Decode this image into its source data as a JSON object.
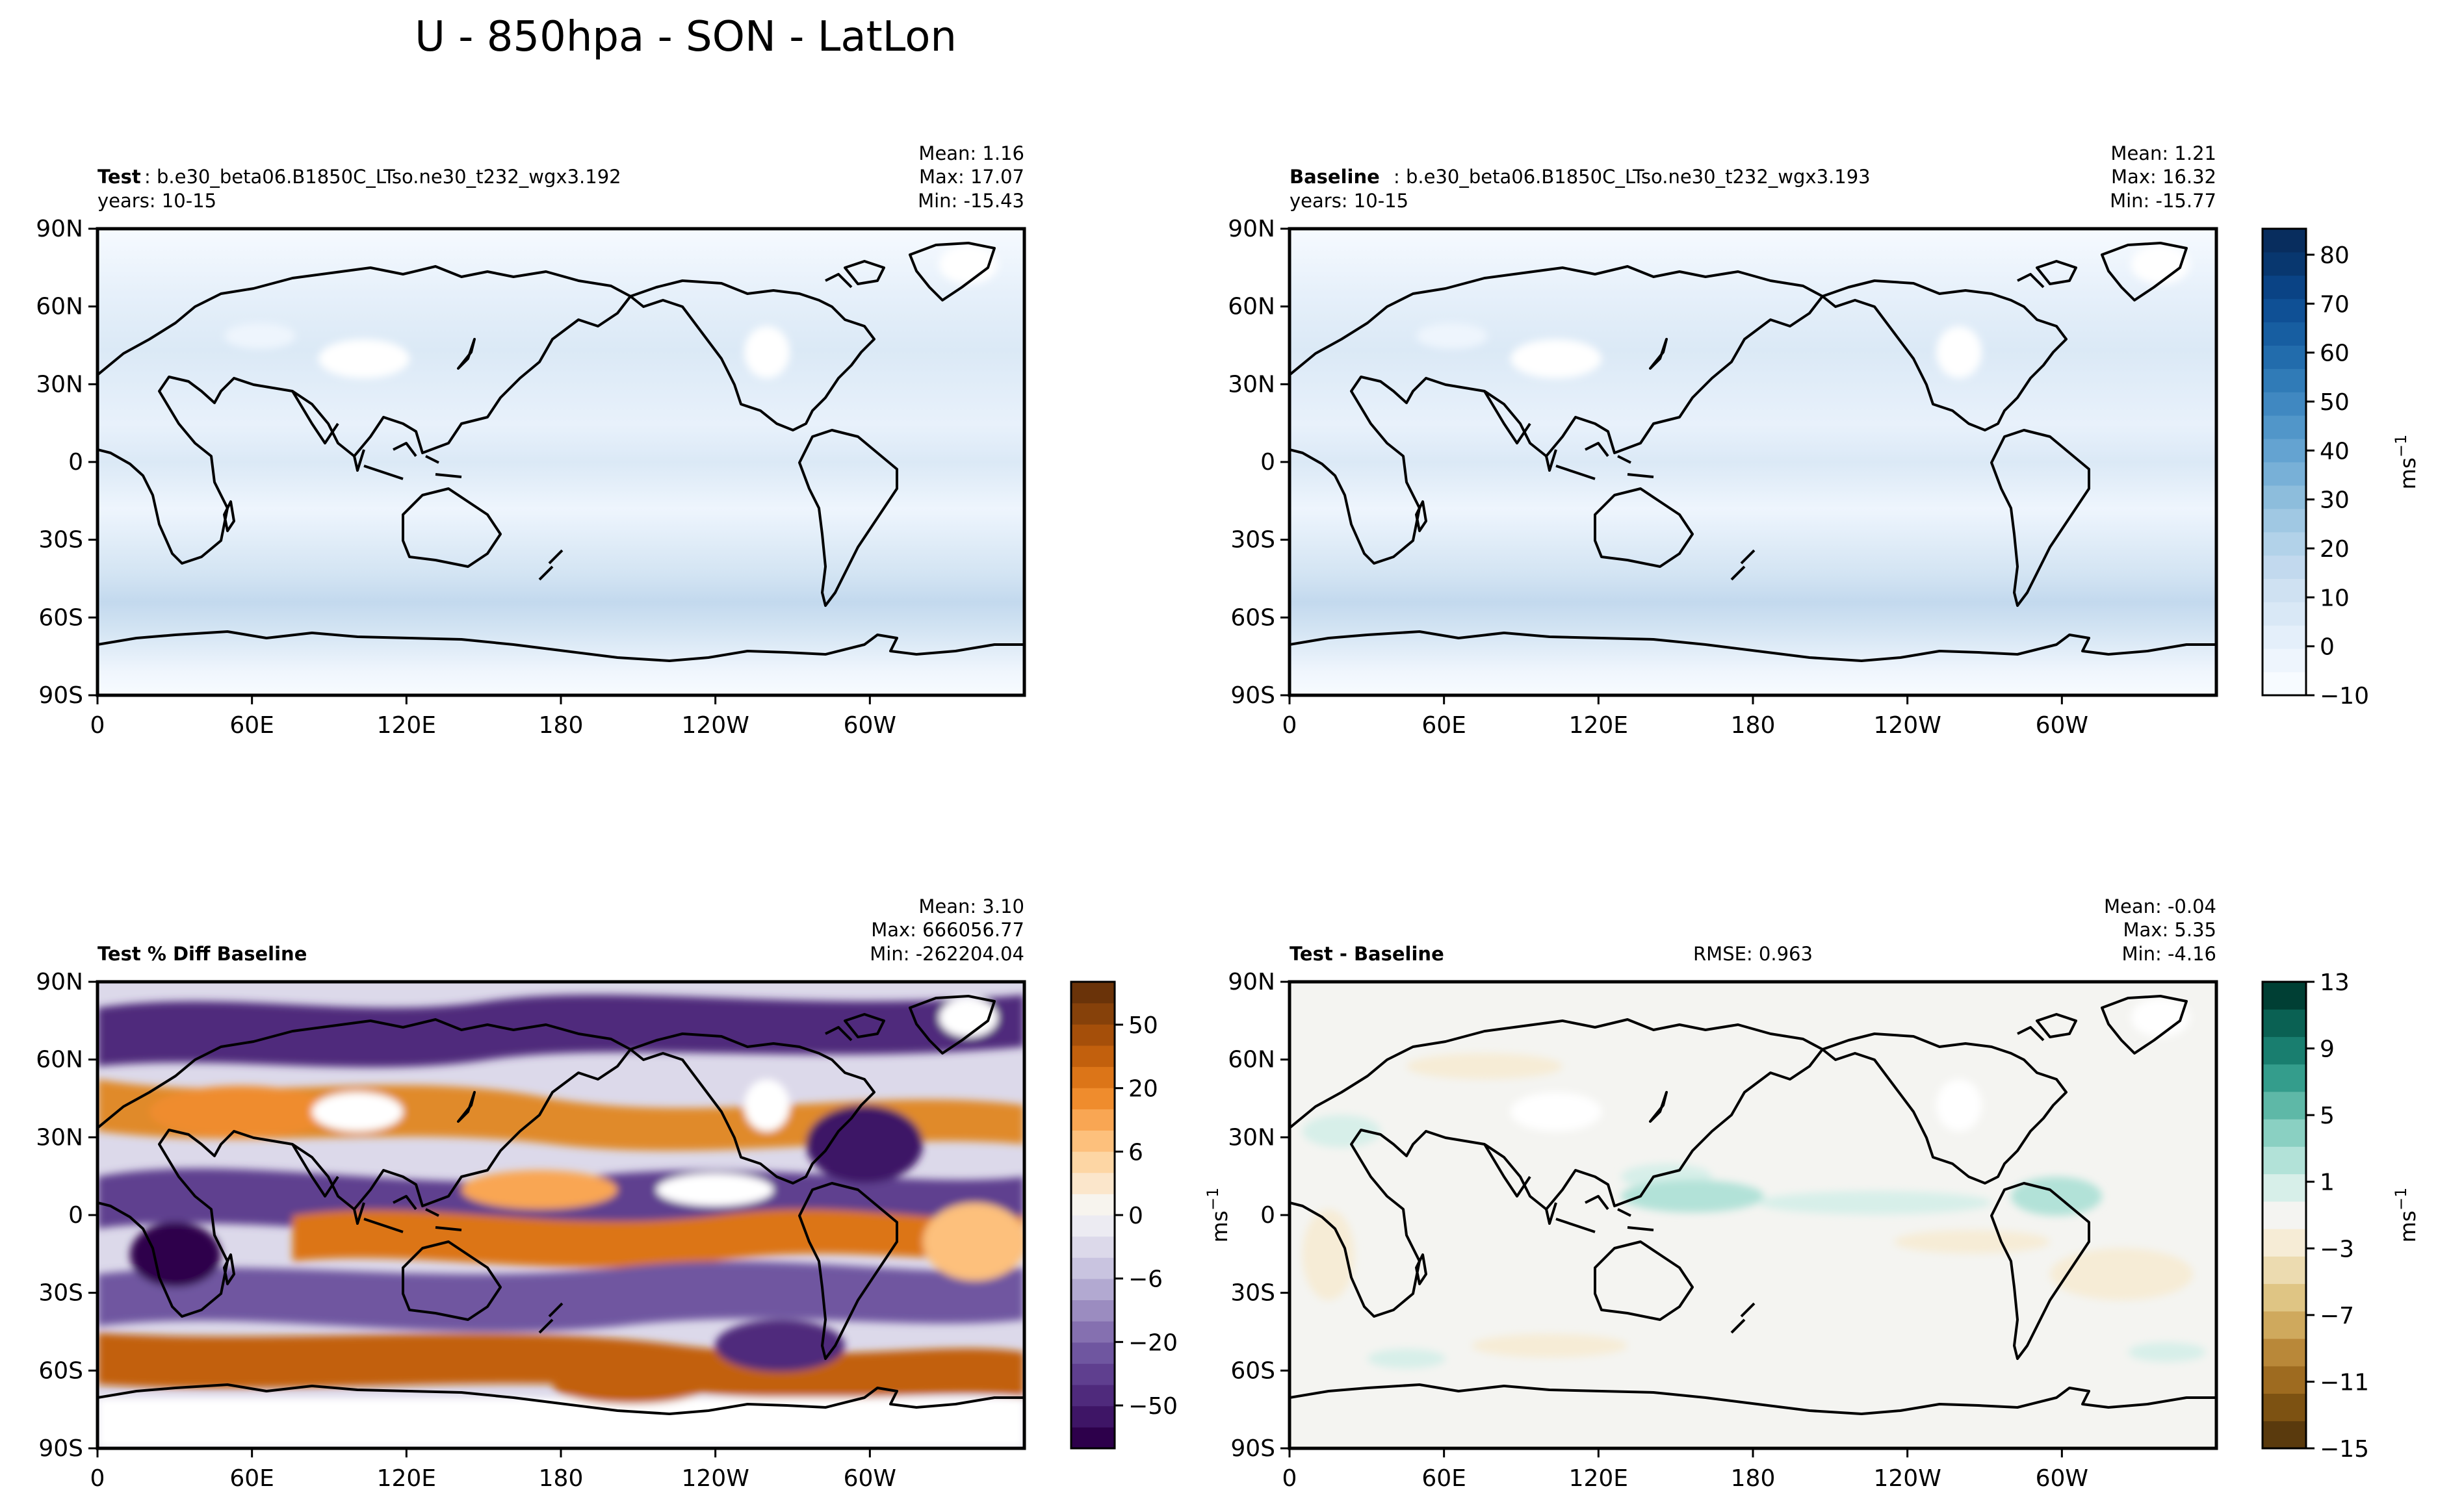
{
  "figure": {
    "title": "U - 850hpa - SON - LatLon"
  },
  "axes": {
    "x_ticks": [
      "0",
      "60E",
      "120E",
      "180",
      "120W",
      "60W"
    ],
    "y_ticks": [
      "90N",
      "60N",
      "30N",
      "0",
      "30S",
      "60S",
      "90S"
    ]
  },
  "panels": [
    {
      "id": "test",
      "label_bold": "Test",
      "label_text": ": b.e30_beta06.B1850C_LTso.ne30_t232_wgx3.192",
      "years": "years: 10-15",
      "mean": "Mean:  1.16",
      "max": "Max: 17.07",
      "min": "Min: -15.43"
    },
    {
      "id": "baseline",
      "label_bold": "Baseline",
      "label_text": ": b.e30_beta06.B1850C_LTso.ne30_t232_wgx3.193",
      "years": "years: 10-15",
      "mean": "Mean:  1.21",
      "max": "Max: 16.32",
      "min": "Min: -15.77"
    },
    {
      "id": "pctdiff",
      "label_bold": "Test % Diff Baseline",
      "label_text": "",
      "years": "",
      "mean": "Mean:  3.10",
      "max": "Max: 666056.77",
      "min": "Min: -262204.04"
    },
    {
      "id": "diff",
      "label_bold": "Test - Baseline",
      "label_text": "",
      "years": "",
      "rmse": "RMSE: 0.963",
      "mean": "Mean: -0.04",
      "max": "Max:  5.35",
      "min": "Min: -4.16"
    }
  ],
  "colorbars": {
    "main": {
      "ticks": [
        "80",
        "70",
        "60",
        "50",
        "40",
        "30",
        "20",
        "10",
        "0",
        "−10"
      ],
      "label": "ms",
      "exponent": "−1",
      "colors": [
        "#f7fbff",
        "#eef5fd",
        "#e4effa",
        "#d9e8f6",
        "#cfe1f2",
        "#c2d9ee",
        "#b2d2e9",
        "#a0c8e3",
        "#8dbddc",
        "#78b0d7",
        "#64a3d1",
        "#5196c9",
        "#4088c1",
        "#307bb7",
        "#226cac",
        "#175ea1",
        "#0f5095",
        "#0a4385",
        "#08376f",
        "#082d5e"
      ]
    },
    "pct": {
      "ticks": [
        "50",
        "20",
        "6",
        "0",
        "−6",
        "−20",
        "−50"
      ],
      "label": "ms",
      "exponent": "−1",
      "colors": [
        "#2d004b",
        "#3e1566",
        "#4f2a7c",
        "#5f3f8f",
        "#6f56a0",
        "#8570b0",
        "#9b8cc0",
        "#b2a9d1",
        "#c9c4e0",
        "#dcd9ea",
        "#ecebf2",
        "#f7f4ee",
        "#fbe6cb",
        "#fdd6a4",
        "#fdc07c",
        "#f9a653",
        "#ef8c2d",
        "#dc7518",
        "#c2600d",
        "#a54f0a",
        "#86410a",
        "#6a3309"
      ]
    },
    "diff": {
      "ticks": [
        "13",
        "9",
        "5",
        "1",
        "−3",
        "−7",
        "−11",
        "−15"
      ],
      "label": "ms",
      "exponent": "−1",
      "colors": [
        "#5a3a0d",
        "#7d5212",
        "#9e6b20",
        "#b98839",
        "#cfa95d",
        "#dfc584",
        "#ecdbb0",
        "#f6ecd6",
        "#f4f4f1",
        "#d7efe9",
        "#b2e2d8",
        "#8ad0c2",
        "#5eb8a7",
        "#349d8c",
        "#197e6f",
        "#0a6153",
        "#003f34"
      ]
    }
  }
}
